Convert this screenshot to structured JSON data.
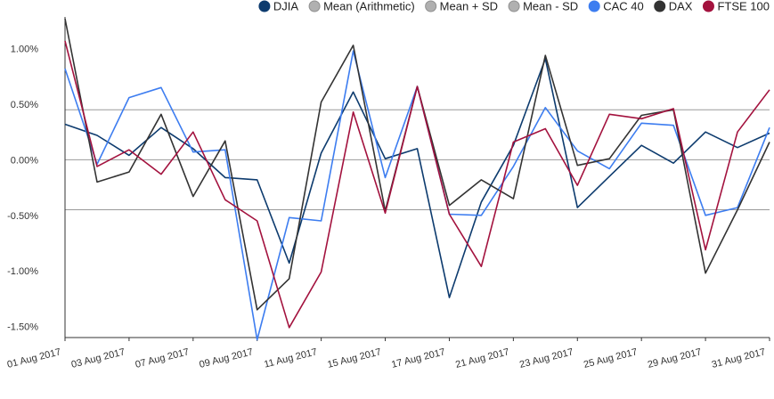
{
  "chart_data": {
    "type": "line",
    "title": "",
    "xlabel": "",
    "ylabel": "",
    "ylim": [
      -1.6,
      1.27
    ],
    "y_ticks": [
      1.0,
      0.5,
      0.0,
      -0.5,
      -1.0,
      -1.5
    ],
    "y_tick_labels": [
      "1.00%",
      "0.50%",
      "0.00%",
      "-0.50%",
      "-1.00%",
      "-1.50%"
    ],
    "x": [
      "01 Aug 2017",
      "02 Aug 2017",
      "03 Aug 2017",
      "04 Aug 2017",
      "07 Aug 2017",
      "08 Aug 2017",
      "09 Aug 2017",
      "10 Aug 2017",
      "11 Aug 2017",
      "14 Aug 2017",
      "15 Aug 2017",
      "16 Aug 2017",
      "17 Aug 2017",
      "18 Aug 2017",
      "21 Aug 2017",
      "22 Aug 2017",
      "23 Aug 2017",
      "24 Aug 2017",
      "25 Aug 2017",
      "28 Aug 2017",
      "29 Aug 2017",
      "30 Aug 2017",
      "31 Aug 2017"
    ],
    "x_tick_labels": [
      "01 Aug 2017",
      "03 Aug 2017",
      "07 Aug 2017",
      "09 Aug 2017",
      "11 Aug 2017",
      "15 Aug 2017",
      "17 Aug 2017",
      "21 Aug 2017",
      "23 Aug 2017",
      "25 Aug 2017",
      "29 Aug 2017",
      "31 Aug 2017"
    ],
    "x_tick_indices": [
      0,
      2,
      4,
      6,
      8,
      10,
      12,
      14,
      16,
      18,
      20,
      22
    ],
    "legend_position": "top-right",
    "legend": [
      {
        "name": "DJIA",
        "color": "#0d3b6e"
      },
      {
        "name": "Mean (Arithmetic)",
        "color": "#b0b0b0"
      },
      {
        "name": "Mean + SD",
        "color": "#b0b0b0"
      },
      {
        "name": "Mean - SD",
        "color": "#b0b0b0"
      },
      {
        "name": "CAC 40",
        "color": "#3d7df0"
      },
      {
        "name": "DAX",
        "color": "#333333"
      },
      {
        "name": "FTSE 100",
        "color": "#a3123e"
      }
    ],
    "reference_lines": [
      {
        "name": "Mean + SD",
        "value": 0.45
      },
      {
        "name": "Mean (Arithmetic)",
        "value": 0.0
      },
      {
        "name": "Mean - SD",
        "value": -0.45
      }
    ],
    "series": [
      {
        "name": "DJIA",
        "color": "#0d3b6e",
        "values": [
          0.32,
          0.22,
          0.04,
          0.29,
          0.1,
          -0.16,
          -0.18,
          -0.93,
          0.06,
          0.61,
          0.01,
          0.1,
          -1.24,
          -0.38,
          0.13,
          0.91,
          -0.43,
          -0.15,
          0.13,
          -0.03,
          0.25,
          0.11,
          0.24
        ]
      },
      {
        "name": "CAC 40",
        "color": "#3d7df0",
        "values": [
          0.82,
          -0.04,
          0.56,
          0.65,
          0.07,
          0.09,
          -1.62,
          -0.52,
          -0.55,
          0.98,
          -0.16,
          0.66,
          -0.49,
          -0.5,
          -0.06,
          0.47,
          0.08,
          -0.08,
          0.33,
          0.31,
          -0.5,
          -0.43,
          0.29
        ]
      },
      {
        "name": "DAX",
        "color": "#333333",
        "values": [
          1.27,
          -0.2,
          -0.11,
          0.41,
          -0.33,
          0.17,
          -1.35,
          -1.07,
          0.52,
          1.03,
          -0.46,
          0.66,
          -0.41,
          -0.18,
          -0.35,
          0.94,
          -0.05,
          0.01,
          0.4,
          0.45,
          -1.02,
          -0.45,
          0.16
        ]
      },
      {
        "name": "FTSE 100",
        "color": "#a3123e",
        "values": [
          1.07,
          -0.06,
          0.09,
          -0.13,
          0.25,
          -0.36,
          -0.55,
          -1.51,
          -1.01,
          0.43,
          -0.48,
          0.66,
          -0.49,
          -0.96,
          0.16,
          0.28,
          -0.23,
          0.41,
          0.37,
          0.46,
          -0.81,
          0.25,
          0.63
        ]
      }
    ]
  }
}
